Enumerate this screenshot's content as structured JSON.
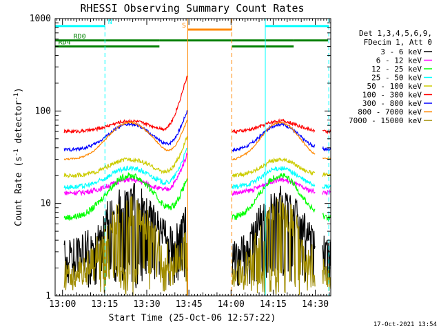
{
  "chart_data": {
    "type": "line",
    "title": "RHESSI Observing Summary Count Rates",
    "xlabel": "Start Time (25-Oct-06 12:57:22)",
    "ylabel_parts": [
      "Count Rate (s",
      "-1",
      " detector",
      "-1",
      ")"
    ],
    "footer": "17-Oct-2021 13:54",
    "x_axis": {
      "start_minute": -2.63,
      "end_minute": 95.5,
      "ticks": [
        {
          "label": "13:00",
          "minute": 0
        },
        {
          "label": "13:15",
          "minute": 15
        },
        {
          "label": "13:30",
          "minute": 30
        },
        {
          "label": "13:45",
          "minute": 45
        },
        {
          "label": "14:00",
          "minute": 60
        },
        {
          "label": "14:15",
          "minute": 75
        },
        {
          "label": "14:30",
          "minute": 90
        }
      ]
    },
    "y_axis": {
      "scale": "log",
      "ylim": [
        1,
        1000
      ],
      "ticks": [
        {
          "label": "1",
          "value": 1
        },
        {
          "label": "10",
          "value": 10
        },
        {
          "label": "100",
          "value": 100
        },
        {
          "label": "1000",
          "value": 1000
        }
      ]
    },
    "legend": {
      "placement": "right",
      "header": [
        "Det 1,3,4,5,6,9,",
        "FDecim 1, Att 0"
      ]
    },
    "series": [
      {
        "name": "3 - 6 keV",
        "color": "#000000",
        "base": 3.0,
        "peak": 12.0,
        "noise": 0.35,
        "floor": 1.2
      },
      {
        "name": "6 - 12 keV",
        "color": "#ff00ff",
        "base": 13.0,
        "peak": 18.0,
        "noise": 0.06
      },
      {
        "name": "12 - 25 keV",
        "color": "#00ff00",
        "base": 7.0,
        "peak": 20.0,
        "noise": 0.08
      },
      {
        "name": "25 - 50 keV",
        "color": "#00ffff",
        "base": 15.0,
        "peak": 24.0,
        "noise": 0.06
      },
      {
        "name": "50 - 100 keV",
        "color": "#cccc00",
        "base": 20.0,
        "peak": 30.0,
        "noise": 0.05
      },
      {
        "name": "100 - 300 keV",
        "color": "#ff0000",
        "base": 60.0,
        "peak": 78.0,
        "noise": 0.04
      },
      {
        "name": "300 - 800 keV",
        "color": "#0000ff",
        "base": 38.0,
        "peak": 72.0,
        "noise": 0.04
      },
      {
        "name": "800 - 7000 keV",
        "color": "#ff8800",
        "base": 30.0,
        "peak": 75.0,
        "noise": 0.02
      },
      {
        "name": "7000 - 15000 keV",
        "color": "#a08c00",
        "base": 1.6,
        "peak": 8.0,
        "noise": 0.4,
        "floor": 1.0
      }
    ],
    "data_gaps": [
      [
        -2.63,
        0.5
      ],
      [
        44.5,
        60.3
      ],
      [
        90.0,
        92.5
      ]
    ],
    "vertical_markers": [
      {
        "minute": 15.1,
        "color": "#00ffff",
        "style": "dashed"
      },
      {
        "minute": 44.6,
        "color": "#ff8800",
        "style": "solid"
      },
      {
        "minute": 60.3,
        "color": "#ff8800",
        "style": "dashed"
      },
      {
        "minute": 72.2,
        "color": "#00ffff",
        "style": "solid"
      },
      {
        "minute": 94.8,
        "color": "#00ffff",
        "style": "dashed"
      }
    ],
    "flag_bars": [
      {
        "label": "N",
        "color": "#00ffff",
        "row": 830,
        "segments": [
          [
            -2.63,
            15.1
          ],
          [
            72.2,
            94.8
          ]
        ],
        "label_minute": 16.2
      },
      {
        "label": "S",
        "color": "#ff8800",
        "row": 760,
        "segments": [
          [
            44.6,
            60.3
          ]
        ],
        "label_minute": 42.5
      },
      {
        "label": "RD0",
        "color": "#008000",
        "row": 580,
        "segments": [
          [
            -2.63,
            34.5
          ],
          [
            34.5,
            60.3
          ],
          [
            60.3,
            82.3
          ],
          [
            82.3,
            94.5
          ]
        ],
        "label_minute": 3.9
      },
      {
        "label": "RD4",
        "color": "#008000",
        "row": 500,
        "segments": [
          [
            -2.63,
            34.5
          ],
          [
            60.3,
            82.3
          ]
        ],
        "label_minute": -1.5
      }
    ]
  }
}
